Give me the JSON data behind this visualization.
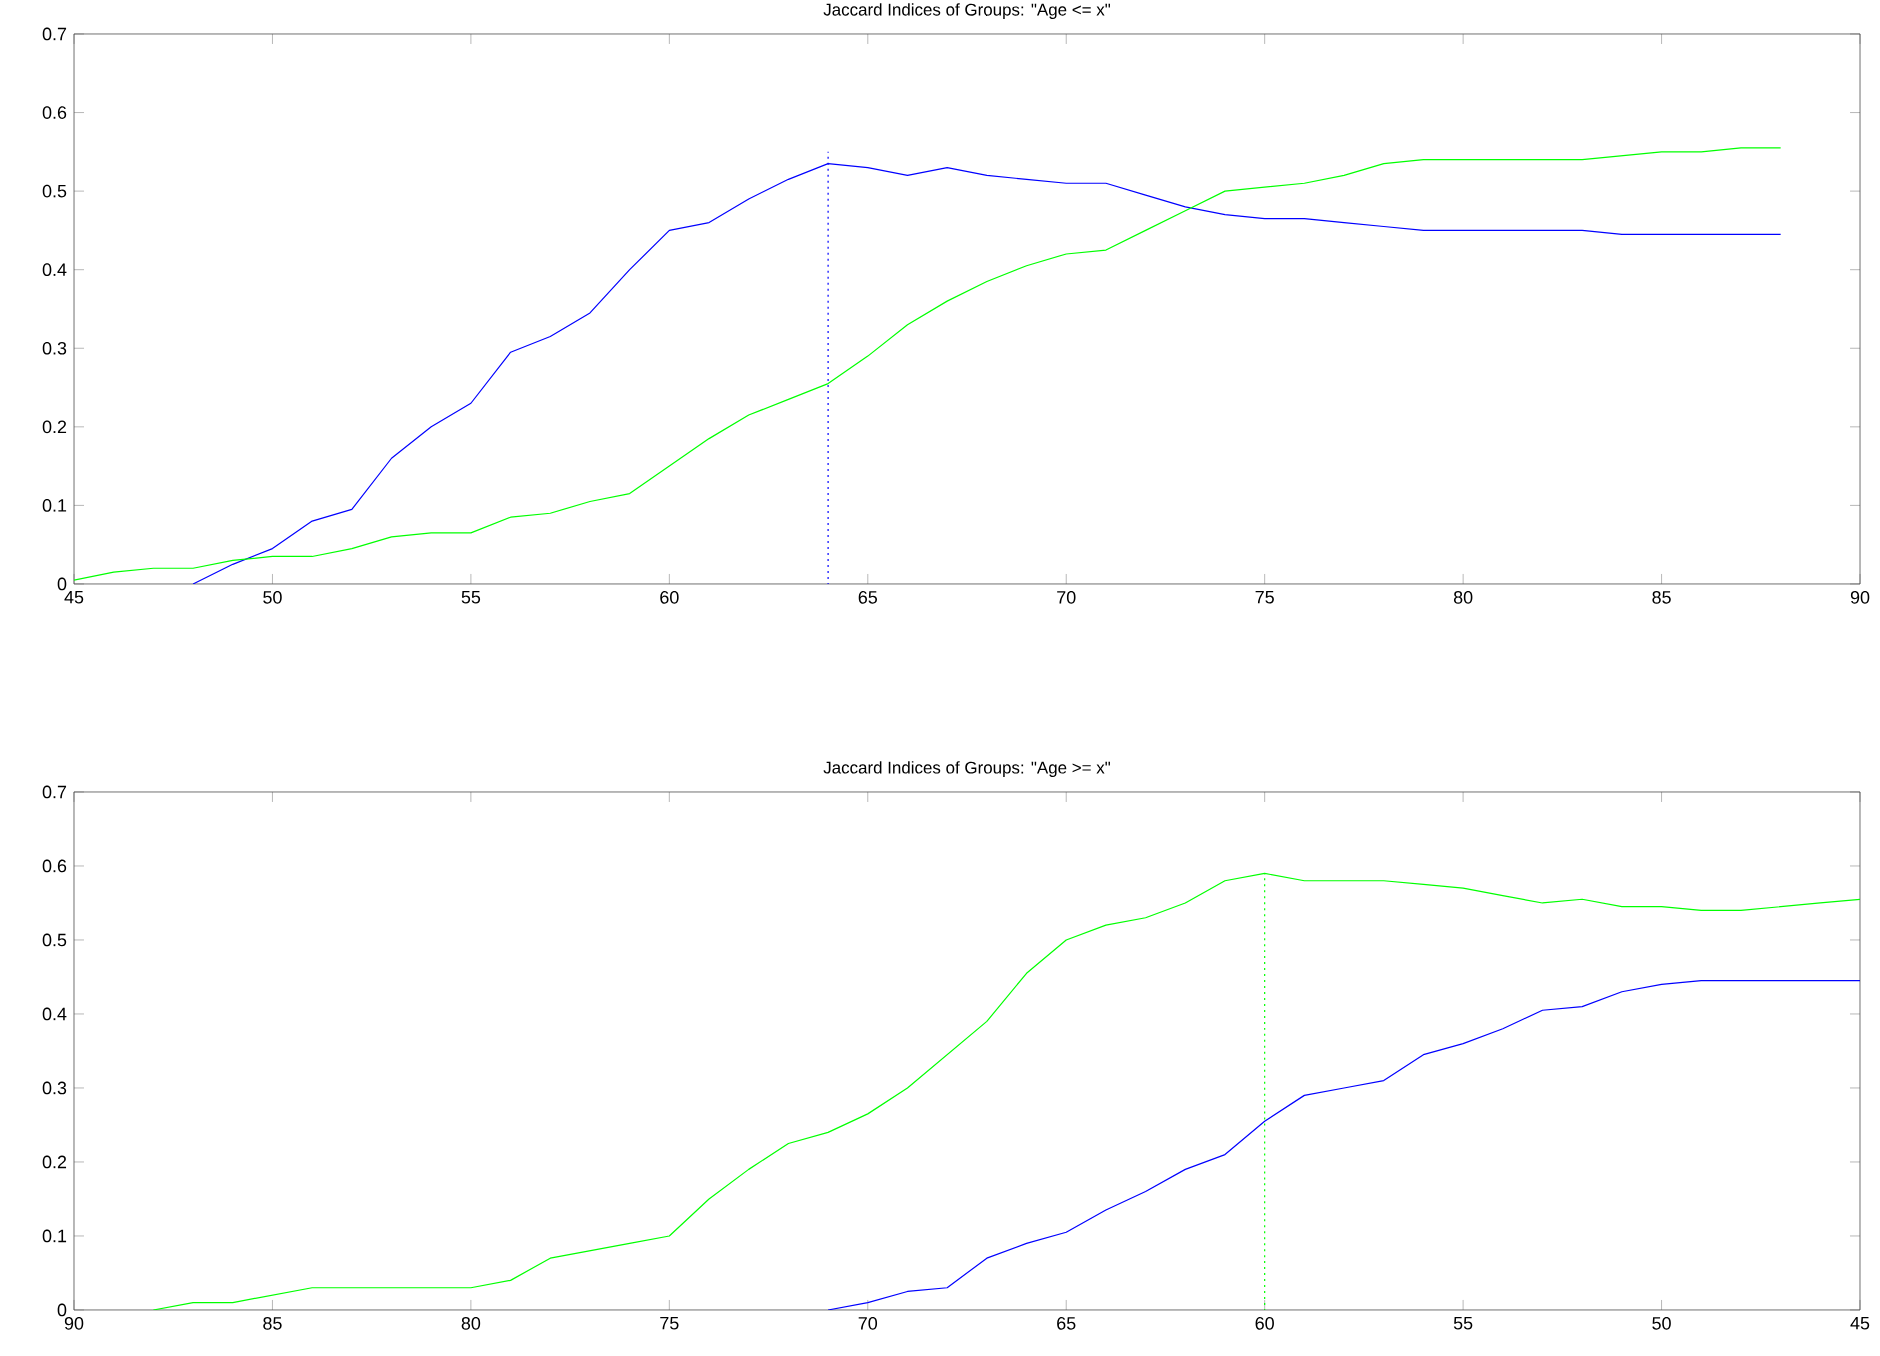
{
  "chart_data": [
    {
      "type": "line",
      "title": "Jaccard Indices of Groups: \"Age <= x\"",
      "xlim": [
        45,
        90
      ],
      "xticks": [
        45,
        50,
        55,
        60,
        65,
        70,
        75,
        80,
        85,
        90
      ],
      "ylim": [
        0,
        0.7
      ],
      "yticks": [
        0,
        0.1,
        0.2,
        0.3,
        0.4,
        0.5,
        0.6,
        0.7
      ],
      "marker": "none",
      "line_style": "solid",
      "series": [
        {
          "color": "#0000ff",
          "x": [
            48,
            49,
            50,
            51,
            52,
            53,
            54,
            55,
            56,
            57,
            58,
            59,
            60,
            61,
            62,
            63,
            64,
            65,
            66,
            67,
            68,
            69,
            70,
            71,
            72,
            73,
            74,
            75,
            76,
            77,
            78,
            79,
            80,
            81,
            82,
            83,
            84,
            85,
            86,
            87,
            88
          ],
          "values": [
            0,
            0.025,
            0.045,
            0.08,
            0.095,
            0.16,
            0.2,
            0.23,
            0.295,
            0.315,
            0.345,
            0.4,
            0.45,
            0.46,
            0.49,
            0.515,
            0.535,
            0.53,
            0.52,
            0.53,
            0.52,
            0.515,
            0.51,
            0.51,
            0.495,
            0.48,
            0.47,
            0.465,
            0.465,
            0.46,
            0.455,
            0.45,
            0.45,
            0.45,
            0.45,
            0.45,
            0.445,
            0.445,
            0.445,
            0.445,
            0.445
          ]
        },
        {
          "color": "#00ff00",
          "x": [
            45,
            46,
            47,
            48,
            49,
            50,
            51,
            52,
            53,
            54,
            55,
            56,
            57,
            58,
            59,
            60,
            61,
            62,
            63,
            64,
            65,
            66,
            67,
            68,
            69,
            70,
            71,
            72,
            73,
            74,
            75,
            76,
            77,
            78,
            79,
            80,
            81,
            82,
            83,
            84,
            85,
            86,
            87,
            88
          ],
          "values": [
            0.005,
            0.015,
            0.02,
            0.02,
            0.03,
            0.035,
            0.035,
            0.045,
            0.06,
            0.065,
            0.065,
            0.085,
            0.09,
            0.105,
            0.115,
            0.15,
            0.185,
            0.215,
            0.235,
            0.255,
            0.29,
            0.33,
            0.36,
            0.385,
            0.405,
            0.42,
            0.425,
            0.45,
            0.475,
            0.5,
            0.505,
            0.51,
            0.52,
            0.535,
            0.54,
            0.54,
            0.54,
            0.54,
            0.54,
            0.545,
            0.55,
            0.55,
            0.555,
            0.555
          ]
        },
        {
          "type": "line",
          "color": "#0000ff",
          "line_style": "dotted",
          "x": [
            64,
            64
          ],
          "values": [
            0,
            0.55
          ]
        }
      ]
    },
    {
      "type": "line",
      "title": "Jaccard Indices of Groups: \"Age >= x\"",
      "xlim": [
        90,
        45
      ],
      "xticks": [
        90,
        85,
        80,
        75,
        70,
        65,
        60,
        55,
        50,
        45
      ],
      "ylim": [
        0,
        0.7
      ],
      "yticks": [
        0,
        0.1,
        0.2,
        0.3,
        0.4,
        0.5,
        0.6,
        0.7
      ],
      "marker": "none",
      "line_style": "solid",
      "series": [
        {
          "color": "#00ff00",
          "x": [
            88,
            87,
            86,
            85,
            84,
            83,
            82,
            81,
            80,
            79,
            78,
            77,
            76,
            75,
            74,
            73,
            72,
            71,
            70,
            69,
            68,
            67,
            66,
            65,
            64,
            63,
            62,
            61,
            60,
            59,
            58,
            57,
            56,
            55,
            54,
            53,
            52,
            51,
            50,
            49,
            48,
            47,
            46,
            45
          ],
          "values": [
            0,
            0.01,
            0.01,
            0.02,
            0.03,
            0.03,
            0.03,
            0.03,
            0.03,
            0.04,
            0.07,
            0.08,
            0.09,
            0.1,
            0.15,
            0.19,
            0.225,
            0.24,
            0.265,
            0.3,
            0.345,
            0.39,
            0.455,
            0.5,
            0.52,
            0.53,
            0.55,
            0.58,
            0.59,
            0.58,
            0.58,
            0.58,
            0.575,
            0.57,
            0.56,
            0.55,
            0.555,
            0.545,
            0.545,
            0.54,
            0.54,
            0.545,
            0.55,
            0.555
          ]
        },
        {
          "color": "#0000ff",
          "x": [
            71,
            70,
            69,
            68,
            67,
            66,
            65,
            64,
            63,
            62,
            61,
            60,
            59,
            58,
            57,
            56,
            55,
            54,
            53,
            52,
            51,
            50,
            49,
            48,
            47,
            46,
            45
          ],
          "values": [
            0,
            0.01,
            0.025,
            0.03,
            0.07,
            0.09,
            0.105,
            0.135,
            0.16,
            0.19,
            0.21,
            0.255,
            0.29,
            0.3,
            0.31,
            0.345,
            0.36,
            0.38,
            0.405,
            0.41,
            0.43,
            0.44,
            0.445,
            0.445,
            0.445,
            0.445,
            0.445
          ]
        },
        {
          "type": "line",
          "color": "#00ff00",
          "line_style": "dotted",
          "x": [
            60,
            60
          ],
          "values": [
            0,
            0.59
          ]
        }
      ]
    }
  ]
}
